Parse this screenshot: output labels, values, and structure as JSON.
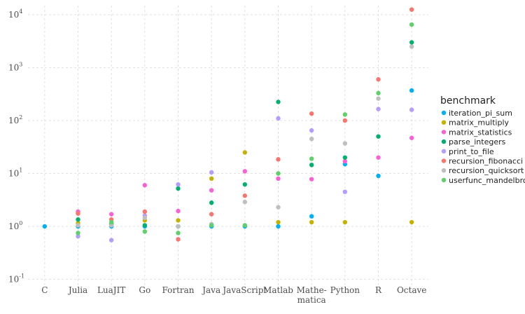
{
  "chart_data": {
    "type": "scatter",
    "title": "",
    "xlabel": "",
    "ylabel": "",
    "y_scale": "log",
    "ylim": [
      0.1,
      20000
    ],
    "grid": true,
    "legend_position": "right",
    "legend_title": "benchmark",
    "categories": [
      {
        "key": "C",
        "lines": [
          "C"
        ]
      },
      {
        "key": "Julia",
        "lines": [
          "Julia"
        ]
      },
      {
        "key": "LuaJIT",
        "lines": [
          "LuaJIT"
        ]
      },
      {
        "key": "Go",
        "lines": [
          "Go"
        ]
      },
      {
        "key": "Fortran",
        "lines": [
          "Fortran"
        ]
      },
      {
        "key": "Java",
        "lines": [
          "Java"
        ]
      },
      {
        "key": "JavaScript",
        "lines": [
          "JavaScript"
        ]
      },
      {
        "key": "Matlab",
        "lines": [
          "Matlab"
        ]
      },
      {
        "key": "Mathematica",
        "lines": [
          "Mathe-",
          "matica"
        ]
      },
      {
        "key": "Python",
        "lines": [
          "Python"
        ]
      },
      {
        "key": "R",
        "lines": [
          "R"
        ]
      },
      {
        "key": "Octave",
        "lines": [
          "Octave"
        ]
      }
    ],
    "y_ticks": [
      {
        "value": 0.1,
        "base": "10",
        "exp": "-1"
      },
      {
        "value": 1,
        "base": "10",
        "exp": "0"
      },
      {
        "value": 10,
        "base": "10",
        "exp": "1"
      },
      {
        "value": 100,
        "base": "10",
        "exp": "2"
      },
      {
        "value": 1000,
        "base": "10",
        "exp": "3"
      },
      {
        "value": 10000,
        "base": "10",
        "exp": "4"
      }
    ],
    "series": [
      {
        "name": "iteration_pi_sum",
        "color": "#00b0f6",
        "values": [
          1.0,
          1.0,
          1.0,
          1.0,
          1.0,
          1.0,
          1.0,
          1.0,
          1.55,
          15.0,
          9.0,
          370
        ]
      },
      {
        "name": "matrix_multiply",
        "color": "#c5b200",
        "values": [
          null,
          1.15,
          1.15,
          1.3,
          1.3,
          8.0,
          25.0,
          1.2,
          1.2,
          1.2,
          null,
          1.2
        ]
      },
      {
        "name": "matrix_statistics",
        "color": "#fb61d7",
        "values": [
          null,
          1.9,
          1.7,
          6.0,
          1.95,
          4.8,
          11.0,
          8.0,
          7.8,
          17.0,
          20.0,
          47.0
        ]
      },
      {
        "name": "parse_integers",
        "color": "#00b06e",
        "values": [
          null,
          1.35,
          1.1,
          1.05,
          5.2,
          2.8,
          6.2,
          225,
          14.5,
          20.0,
          50.0,
          3000
        ]
      },
      {
        "name": "print_to_file",
        "color": "#b49dff",
        "values": [
          null,
          0.65,
          0.55,
          1.6,
          6.2,
          10.5,
          null,
          110,
          65,
          4.5,
          165,
          160
        ]
      },
      {
        "name": "recursion_fibonacci",
        "color": "#f8766d",
        "values": [
          null,
          1.75,
          1.35,
          1.9,
          0.57,
          1.7,
          3.8,
          18.5,
          135,
          100,
          600,
          12500
        ]
      },
      {
        "name": "recursion_quicksort",
        "color": "#bfbfbf",
        "values": [
          null,
          1.05,
          1.05,
          1.45,
          1.0,
          1.1,
          2.9,
          2.3,
          45,
          37,
          260,
          2500
        ]
      },
      {
        "name": "userfunc_mandelbrot",
        "color": "#5fd06a",
        "values": [
          null,
          0.75,
          1.2,
          0.8,
          0.75,
          1.05,
          1.05,
          10.0,
          19.0,
          130,
          330,
          6500
        ]
      }
    ]
  }
}
